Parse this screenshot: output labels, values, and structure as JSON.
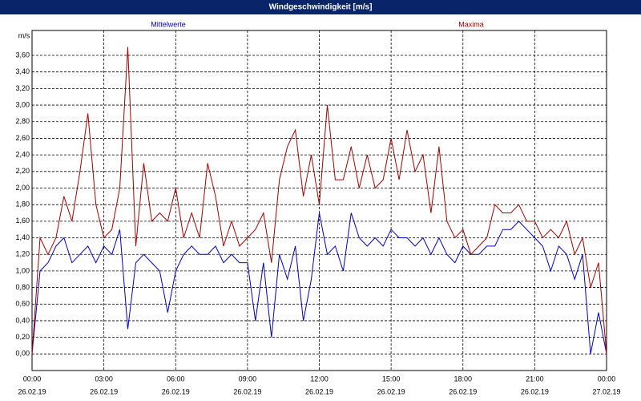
{
  "chart_data": {
    "type": "line",
    "title": "Windgeschwindigkeit [m/s]",
    "y_unit": "m/s",
    "x": [
      0,
      20,
      40,
      60,
      80,
      100,
      120,
      140,
      160,
      180,
      200,
      220,
      240,
      260,
      280,
      300,
      320,
      340,
      360,
      380,
      400,
      420,
      440,
      460,
      480,
      500,
      520,
      540,
      560,
      580,
      600,
      620,
      640,
      660,
      680,
      700,
      720,
      740,
      760,
      780,
      800,
      820,
      840,
      860,
      880,
      900,
      920,
      940,
      960,
      980,
      1000,
      1020,
      1040,
      1060,
      1080,
      1100,
      1120,
      1140,
      1160,
      1180,
      1200,
      1220,
      1240,
      1260,
      1280,
      1300,
      1320,
      1340,
      1360,
      1380,
      1400,
      1420,
      1440
    ],
    "series": [
      {
        "name": "Mittelwerte",
        "color": "#0000c0",
        "values": [
          0.0,
          1.0,
          1.1,
          1.3,
          1.4,
          1.1,
          1.2,
          1.3,
          1.1,
          1.3,
          1.2,
          1.5,
          0.3,
          1.1,
          1.2,
          1.1,
          1.0,
          0.5,
          1.0,
          1.2,
          1.3,
          1.2,
          1.2,
          1.3,
          1.1,
          1.2,
          1.1,
          1.1,
          0.4,
          1.1,
          0.2,
          1.2,
          0.9,
          1.3,
          0.4,
          0.9,
          1.7,
          1.2,
          1.3,
          1.0,
          1.7,
          1.4,
          1.3,
          1.4,
          1.3,
          1.5,
          1.4,
          1.4,
          1.3,
          1.4,
          1.2,
          1.4,
          1.2,
          1.1,
          1.3,
          1.2,
          1.2,
          1.3,
          1.3,
          1.5,
          1.5,
          1.6,
          1.5,
          1.4,
          1.3,
          1.0,
          1.3,
          1.2,
          0.9,
          1.2,
          0.0,
          0.5,
          0.0
        ]
      },
      {
        "name": "Maxima",
        "color": "#a00000",
        "values": [
          0.0,
          1.4,
          1.2,
          1.4,
          1.9,
          1.6,
          2.2,
          2.9,
          1.8,
          1.4,
          1.5,
          2.0,
          3.7,
          1.3,
          2.3,
          1.6,
          1.7,
          1.6,
          2.0,
          1.4,
          1.7,
          1.4,
          2.3,
          1.9,
          1.3,
          1.6,
          1.3,
          1.4,
          1.5,
          1.7,
          1.1,
          2.1,
          2.5,
          2.7,
          1.9,
          2.4,
          1.8,
          3.0,
          2.1,
          2.1,
          2.5,
          2.0,
          2.4,
          2.0,
          2.1,
          2.6,
          2.1,
          2.7,
          2.2,
          2.4,
          1.7,
          2.5,
          1.6,
          1.4,
          1.5,
          1.2,
          1.3,
          1.4,
          1.8,
          1.7,
          1.7,
          1.8,
          1.6,
          1.6,
          1.4,
          1.5,
          1.4,
          1.6,
          1.2,
          1.4,
          0.8,
          1.1,
          0.0
        ]
      }
    ],
    "xlim": [
      0,
      1440
    ],
    "xticks": [
      {
        "value": 0,
        "label": "00:00",
        "date": "26.02.19"
      },
      {
        "value": 180,
        "label": "03:00",
        "date": "26.02.19"
      },
      {
        "value": 360,
        "label": "06:00",
        "date": "26.02.19"
      },
      {
        "value": 540,
        "label": "09:00",
        "date": "26.02.19"
      },
      {
        "value": 720,
        "label": "12:00",
        "date": "26.02.19"
      },
      {
        "value": 900,
        "label": "15:00",
        "date": "26.02.19"
      },
      {
        "value": 1080,
        "label": "18:00",
        "date": "26.02.19"
      },
      {
        "value": 1260,
        "label": "21:00",
        "date": "26.02.19"
      },
      {
        "value": 1440,
        "label": "00:00",
        "date": "27.02.19"
      }
    ],
    "ylim": [
      -0.2,
      3.9
    ],
    "yticks": [
      {
        "value": 0,
        "label": "0,00"
      },
      {
        "value": 0.2,
        "label": "0,20"
      },
      {
        "value": 0.4,
        "label": "0,40"
      },
      {
        "value": 0.6,
        "label": "0,60"
      },
      {
        "value": 0.8,
        "label": "0,80"
      },
      {
        "value": 1.0,
        "label": "1,00"
      },
      {
        "value": 1.2,
        "label": "1,20"
      },
      {
        "value": 1.4,
        "label": "1,40"
      },
      {
        "value": 1.6,
        "label": "1,60"
      },
      {
        "value": 1.8,
        "label": "1,80"
      },
      {
        "value": 2.0,
        "label": "2,00"
      },
      {
        "value": 2.2,
        "label": "2,20"
      },
      {
        "value": 2.4,
        "label": "2,40"
      },
      {
        "value": 2.6,
        "label": "2,60"
      },
      {
        "value": 2.8,
        "label": "2,80"
      },
      {
        "value": 3.0,
        "label": "3,00"
      },
      {
        "value": 3.2,
        "label": "3,20"
      },
      {
        "value": 3.4,
        "label": "3,40"
      },
      {
        "value": 3.6,
        "label": "3,60"
      }
    ],
    "grid": true
  }
}
